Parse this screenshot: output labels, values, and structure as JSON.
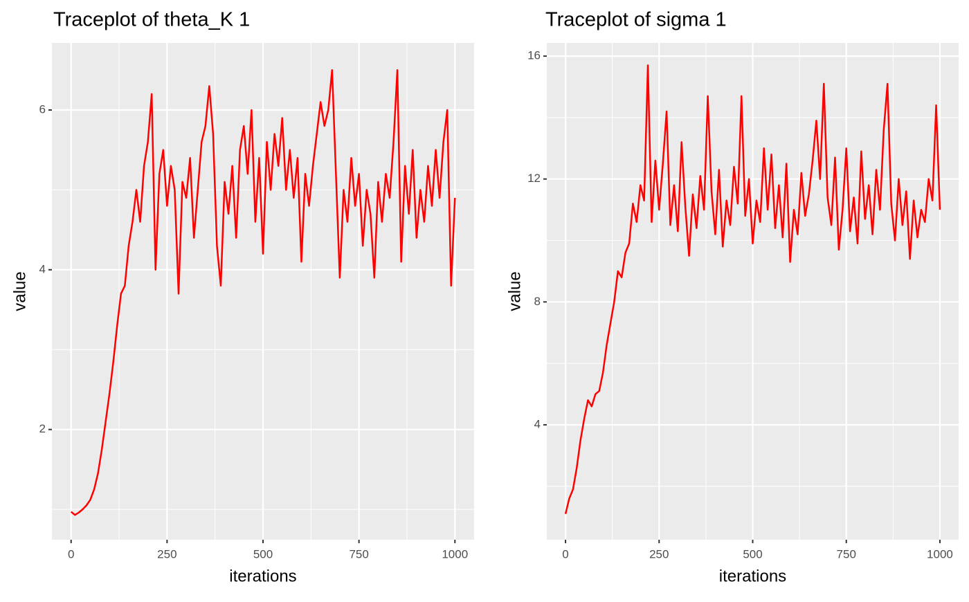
{
  "chart_data": [
    {
      "type": "line",
      "title": "Traceplot of theta_K 1",
      "x_label": "iterations",
      "y_label": "value",
      "color": "#ff0000",
      "grid": true,
      "xlim": [
        -50,
        1050
      ],
      "xticks": [
        0,
        250,
        500,
        750,
        1000
      ],
      "ylim": [
        0.62,
        6.84
      ],
      "yticks": [
        2,
        4,
        6
      ],
      "x": [
        0,
        10,
        20,
        30,
        40,
        50,
        60,
        70,
        80,
        90,
        100,
        110,
        120,
        130,
        140,
        150,
        160,
        170,
        180,
        190,
        200,
        210,
        220,
        230,
        240,
        250,
        260,
        270,
        280,
        290,
        300,
        310,
        320,
        330,
        340,
        350,
        360,
        370,
        380,
        390,
        400,
        410,
        420,
        430,
        440,
        450,
        460,
        470,
        480,
        490,
        500,
        510,
        520,
        530,
        540,
        550,
        560,
        570,
        580,
        590,
        600,
        610,
        620,
        630,
        640,
        650,
        660,
        670,
        680,
        690,
        700,
        710,
        720,
        730,
        740,
        750,
        760,
        770,
        780,
        790,
        800,
        810,
        820,
        830,
        840,
        850,
        860,
        870,
        880,
        890,
        900,
        910,
        920,
        930,
        940,
        950,
        960,
        970,
        980,
        990,
        1000
      ],
      "values": [
        0.97,
        0.93,
        0.96,
        1.0,
        1.05,
        1.12,
        1.25,
        1.45,
        1.75,
        2.1,
        2.45,
        2.85,
        3.3,
        3.7,
        3.8,
        4.3,
        4.6,
        5.0,
        4.6,
        5.3,
        5.6,
        6.2,
        4.0,
        5.2,
        5.5,
        4.8,
        5.3,
        5.0,
        3.7,
        5.1,
        4.9,
        5.4,
        4.4,
        5.0,
        5.6,
        5.8,
        6.3,
        5.7,
        4.3,
        3.8,
        5.1,
        4.7,
        5.3,
        4.4,
        5.5,
        5.8,
        5.2,
        6.0,
        4.6,
        5.4,
        4.2,
        5.6,
        5.0,
        5.7,
        5.3,
        5.9,
        5.0,
        5.5,
        4.9,
        5.4,
        4.1,
        5.2,
        4.8,
        5.3,
        5.7,
        6.1,
        5.8,
        6.0,
        6.5,
        5.2,
        3.9,
        5.0,
        4.6,
        5.4,
        4.8,
        5.2,
        4.3,
        5.0,
        4.7,
        3.9,
        5.1,
        4.6,
        5.2,
        4.9,
        5.6,
        6.5,
        4.1,
        5.3,
        4.7,
        5.5,
        4.4,
        5.0,
        4.6,
        5.3,
        4.8,
        5.5,
        4.9,
        5.6,
        6.0,
        3.8,
        4.9
      ]
    },
    {
      "type": "line",
      "title": "Traceplot of sigma 1",
      "x_label": "iterations",
      "y_label": "value",
      "color": "#ff0000",
      "grid": true,
      "xlim": [
        -50,
        1050
      ],
      "xticks": [
        0,
        250,
        500,
        750,
        1000
      ],
      "ylim": [
        0.26,
        16.43
      ],
      "yticks": [
        4,
        8,
        12,
        16
      ],
      "x": [
        0,
        10,
        20,
        30,
        40,
        50,
        60,
        70,
        80,
        90,
        100,
        110,
        120,
        130,
        140,
        150,
        160,
        170,
        180,
        190,
        200,
        210,
        220,
        230,
        240,
        250,
        260,
        270,
        280,
        290,
        300,
        310,
        320,
        330,
        340,
        350,
        360,
        370,
        380,
        390,
        400,
        410,
        420,
        430,
        440,
        450,
        460,
        470,
        480,
        490,
        500,
        510,
        520,
        530,
        540,
        550,
        560,
        570,
        580,
        590,
        600,
        610,
        620,
        630,
        640,
        650,
        660,
        670,
        680,
        690,
        700,
        710,
        720,
        730,
        740,
        750,
        760,
        770,
        780,
        790,
        800,
        810,
        820,
        830,
        840,
        850,
        860,
        870,
        880,
        890,
        900,
        910,
        920,
        930,
        940,
        950,
        960,
        970,
        980,
        990,
        1000
      ],
      "values": [
        1.1,
        1.6,
        1.9,
        2.6,
        3.5,
        4.2,
        4.8,
        4.6,
        5.0,
        5.1,
        5.7,
        6.6,
        7.3,
        8.0,
        9.0,
        8.8,
        9.6,
        9.9,
        11.2,
        10.6,
        11.8,
        11.3,
        15.7,
        10.6,
        12.6,
        11.0,
        12.5,
        14.2,
        10.5,
        11.8,
        10.3,
        13.2,
        11.1,
        9.5,
        11.5,
        10.4,
        12.1,
        11.0,
        14.7,
        11.6,
        10.2,
        12.3,
        9.8,
        11.3,
        10.5,
        12.4,
        11.2,
        14.7,
        10.8,
        12.0,
        9.9,
        11.3,
        10.6,
        13.0,
        11.0,
        12.8,
        10.4,
        11.8,
        10.1,
        12.5,
        9.3,
        11.0,
        10.2,
        12.2,
        10.8,
        11.5,
        12.6,
        13.9,
        12.0,
        15.1,
        11.4,
        10.5,
        12.7,
        9.7,
        11.0,
        13.0,
        10.3,
        11.4,
        9.9,
        12.9,
        10.7,
        11.8,
        10.2,
        12.3,
        11.0,
        13.6,
        15.1,
        11.2,
        10.0,
        12.0,
        10.5,
        11.6,
        9.4,
        11.3,
        10.1,
        11.0,
        10.6,
        12.0,
        11.3,
        14.4,
        11.0
      ]
    }
  ]
}
